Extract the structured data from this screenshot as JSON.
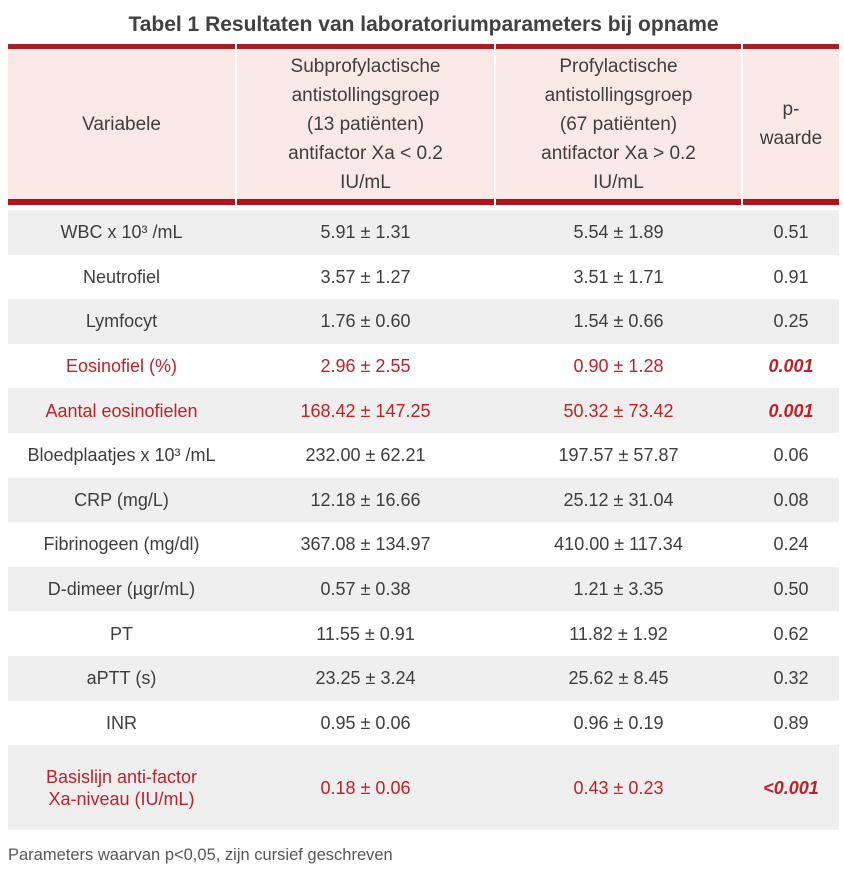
{
  "title": "Tabel 1 Resultaten van laboratoriumparameters bij opname",
  "colors": {
    "rule_red_top": "#a81e22",
    "rule_red_mid": "#b2121a",
    "header_pink": "#fbe9e8",
    "row_stripe_gray": "#efefef",
    "body_text": "#3e3e40",
    "significant_red": "#c02127"
  },
  "table": {
    "headers": [
      "Variabele",
      "Subprofylactische\nantistollingsgroep\n(13 patiënten)\nantifactor Xa < 0.2\nIU/mL",
      "Profylactische\nantistollingsgroep\n(67 patiënten)\nantifactor Xa > 0.2\nIU/mL",
      "p-\nwaarde"
    ],
    "rows": [
      {
        "variable": "WBC x 10³ /mL",
        "group1": "5.91 ± 1.31",
        "group2": "5.54 ± 1.89",
        "p": "0.51"
      },
      {
        "variable": "Neutrofiel",
        "group1": "3.57 ± 1.27",
        "group2": "3.51 ± 1.71",
        "p": "0.91"
      },
      {
        "variable": "Lymfocyt",
        "group1": "1.76 ± 0.60",
        "group2": "1.54 ± 0.66",
        "p": "0.25"
      },
      {
        "variable": "Eosinofiel (%)",
        "group1": "2.96 ± 2.55",
        "group2": "0.90 ± 1.28",
        "p": "0.001"
      },
      {
        "variable": "Aantal eosinofielen",
        "group1": "168.42 ± 147.25",
        "group2": "50.32 ± 73.42",
        "p": "0.001"
      },
      {
        "variable": "Bloedplaatjes x 10³ /mL",
        "group1": "232.00 ± 62.21",
        "group2": "197.57 ± 57.87",
        "p": "0.06"
      },
      {
        "variable": "CRP (mg/L)",
        "group1": "12.18 ± 16.66",
        "group2": "25.12 ± 31.04",
        "p": "0.08"
      },
      {
        "variable": "Fibrinogeen (mg/dl)",
        "group1": "367.08 ± 134.97",
        "group2": "410.00 ± 117.34",
        "p": "0.24"
      },
      {
        "variable": "D-dimeer (µgr/mL)",
        "group1": "0.57 ± 0.38",
        "group2": "1.21 ± 3.35",
        "p": "0.50"
      },
      {
        "variable": "PT",
        "group1": "11.55 ± 0.91",
        "group2": "11.82 ± 1.92",
        "p": "0.62"
      },
      {
        "variable": "aPTT (s)",
        "group1": "23.25 ± 3.24",
        "group2": "25.62 ± 8.45",
        "p": "0.32"
      },
      {
        "variable": "INR",
        "group1": "0.95 ± 0.06",
        "group2": "0.96 ± 0.19",
        "p": "0.89"
      },
      {
        "variable": "Basislijn anti-factor\nXa-niveau (IU/mL)",
        "group1": "0.18 ± 0.06",
        "group2": "0.43 ± 0.23",
        "p": "<0.001"
      }
    ]
  },
  "footnote": "Parameters waarvan p<0,05, zijn cursief geschreven"
}
